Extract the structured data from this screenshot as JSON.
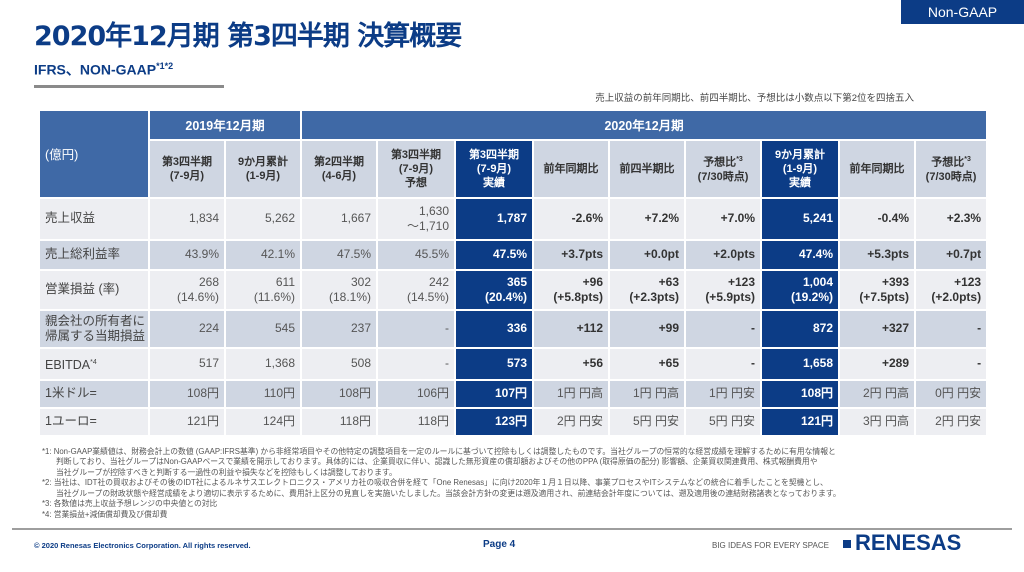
{
  "badge": "Non-GAAP",
  "header": {
    "title": "2020年12月期 第3四半期 決算概要",
    "subtitle": "IFRS、NON-GAAP",
    "subtitle_sup": "*1*2"
  },
  "note_top": "売上収益の前年同期比、前四半期比、予想比は小数点以下第2位を四捨五入",
  "table": {
    "unit": "(億円)",
    "year_groups": [
      "2019年12月期",
      "2020年12月期"
    ],
    "columns": [
      {
        "l1": "第3四半期",
        "l2": "(7-9月)",
        "l3": ""
      },
      {
        "l1": "9か月累計",
        "l2": "(1-9月)",
        "l3": ""
      },
      {
        "l1": "第2四半期",
        "l2": "(4-6月)",
        "l3": ""
      },
      {
        "l1": "第3四半期",
        "l2": "(7-9月)",
        "l3": "予想"
      },
      {
        "l1": "第3四半期",
        "l2": "(7-9月)",
        "l3": "実績"
      },
      {
        "l1": "前年同期比",
        "l2": "",
        "l3": ""
      },
      {
        "l1": "前四半期比",
        "l2": "",
        "l3": ""
      },
      {
        "l1": "予想比",
        "sup": "*3",
        "l2": "(7/30時点)",
        "l3": ""
      },
      {
        "l1": "9か月累計",
        "l2": "(1-9月)",
        "l3": "実績"
      },
      {
        "l1": "前年同期比",
        "l2": "",
        "l3": ""
      },
      {
        "l1": "予想比",
        "sup": "*3",
        "l2": "(7/30時点)",
        "l3": ""
      }
    ],
    "rows": [
      {
        "label": "売上収益",
        "label2": "",
        "cells": [
          [
            "1,834",
            ""
          ],
          [
            "5,262",
            ""
          ],
          [
            "1,667",
            ""
          ],
          [
            "1,630",
            "～1,710"
          ],
          [
            "1,787",
            ""
          ],
          [
            "-2.6%",
            ""
          ],
          [
            "+7.2%",
            ""
          ],
          [
            "+7.0%",
            ""
          ],
          [
            "5,241",
            ""
          ],
          [
            "-0.4%",
            ""
          ],
          [
            "+2.3%",
            ""
          ]
        ]
      },
      {
        "label": "売上総利益率",
        "label2": "",
        "cells": [
          [
            "43.9%",
            ""
          ],
          [
            "42.1%",
            ""
          ],
          [
            "47.5%",
            ""
          ],
          [
            "45.5%",
            ""
          ],
          [
            "47.5%",
            ""
          ],
          [
            "+3.7pts",
            ""
          ],
          [
            "+0.0pt",
            ""
          ],
          [
            "+2.0pts",
            ""
          ],
          [
            "47.4%",
            ""
          ],
          [
            "+5.3pts",
            ""
          ],
          [
            "+0.7pt",
            ""
          ]
        ]
      },
      {
        "label": "営業損益 (率)",
        "label2": "",
        "cells": [
          [
            "268",
            "(14.6%)"
          ],
          [
            "611",
            "(11.6%)"
          ],
          [
            "302",
            "(18.1%)"
          ],
          [
            "242",
            "(14.5%)"
          ],
          [
            "365",
            "(20.4%)"
          ],
          [
            "+96",
            "(+5.8pts)"
          ],
          [
            "+63",
            "(+2.3pts)"
          ],
          [
            "+123",
            "(+5.9pts)"
          ],
          [
            "1,004",
            "(19.2%)"
          ],
          [
            "+393",
            "(+7.5pts)"
          ],
          [
            "+123",
            "(+2.0pts)"
          ]
        ]
      },
      {
        "label": "親会社の所有者に",
        "label2": "帰属する当期損益",
        "cells": [
          [
            "224",
            ""
          ],
          [
            "545",
            ""
          ],
          [
            "237",
            ""
          ],
          [
            "-",
            ""
          ],
          [
            "336",
            ""
          ],
          [
            "+112",
            ""
          ],
          [
            "+99",
            ""
          ],
          [
            "-",
            ""
          ],
          [
            "872",
            ""
          ],
          [
            "+327",
            ""
          ],
          [
            "-",
            ""
          ]
        ]
      },
      {
        "label": " EBITDA",
        "label_sup": "*4",
        "label2": "",
        "cells": [
          [
            "517",
            ""
          ],
          [
            "1,368",
            ""
          ],
          [
            "508",
            ""
          ],
          [
            "-",
            ""
          ],
          [
            "573",
            ""
          ],
          [
            "+56",
            ""
          ],
          [
            "+65",
            ""
          ],
          [
            "-",
            ""
          ],
          [
            "1,658",
            ""
          ],
          [
            "+289",
            ""
          ],
          [
            "-",
            ""
          ]
        ]
      },
      {
        "label": "1米ドル=",
        "label2": "",
        "cells": [
          [
            "108円",
            ""
          ],
          [
            "110円",
            ""
          ],
          [
            "108円",
            ""
          ],
          [
            "106円",
            ""
          ],
          [
            "107円",
            ""
          ],
          [
            "1円 円高",
            ""
          ],
          [
            "1円 円高",
            ""
          ],
          [
            "1円 円安",
            ""
          ],
          [
            "108円",
            ""
          ],
          [
            "2円 円高",
            ""
          ],
          [
            "0円 円安",
            ""
          ]
        ]
      },
      {
        "label": "1ユーロ=",
        "label2": "",
        "cells": [
          [
            "121円",
            ""
          ],
          [
            "124円",
            ""
          ],
          [
            "118円",
            ""
          ],
          [
            "118円",
            ""
          ],
          [
            "123円",
            ""
          ],
          [
            "2円 円安",
            ""
          ],
          [
            "5円 円安",
            ""
          ],
          [
            "5円 円安",
            ""
          ],
          [
            "121円",
            ""
          ],
          [
            "3円 円高",
            ""
          ],
          [
            "2円 円安",
            ""
          ]
        ]
      }
    ]
  },
  "footnotes": [
    {
      "mark": "*1: ",
      "lines": [
        "Non-GAAP業績値は、財務会計上の数値 (GAAP:IFRS基準) から非経常項目やその他特定の調整項目を一定のルールに基づいて控除もしくは調整したものです。当社グループの恒常的な経営成績を理解するために有用な情報と",
        "判断しており、当社グループはNon-GAAPベースで業績を開示しております。具体的には、企業買収に伴い、認識した無形資産の償却額およびその他のPPA (取得原価の配分) 影響額、企業買収関連費用、株式報酬費用や",
        "当社グループが控除すべきと判断する一過性の利益や損失などを控除もしくは調整しております。"
      ]
    },
    {
      "mark": "*2: ",
      "lines": [
        "当社は、IDT社の買収およびその後のIDT社によるルネサスエレクトロニクス・アメリカ社の吸収合併を経て「One Renesas」に向け2020年１月１日以降、事業プロセスやITシステムなどの統合に着手したことを契機とし、",
        "当社グループの財政状態や経営成績をより適切に表示するために、費用計上区分の見直しを実施いたしました。当該会計方針の変更は遡及適用され、前連結会計年度については、遡及適用後の連結財務諸表となっております。"
      ]
    },
    {
      "mark": "*3: ",
      "lines": [
        "各数値は売上収益予想レンジの中央値との対比"
      ]
    },
    {
      "mark": "*4: ",
      "lines": [
        "営業損益+減価償却費及び償却費"
      ]
    }
  ],
  "footer": {
    "copyright": "© 2020 Renesas Electronics Corporation. All rights reserved.",
    "page": "Page 4",
    "tagline": "BIG IDEAS FOR EVERY SPACE",
    "logo": "RENESAS"
  },
  "colors": {
    "brand": "#0c3c86",
    "header_blue": "#3f69a6",
    "header_gray": "#cfd6e2",
    "row_light": "#edeef2"
  }
}
